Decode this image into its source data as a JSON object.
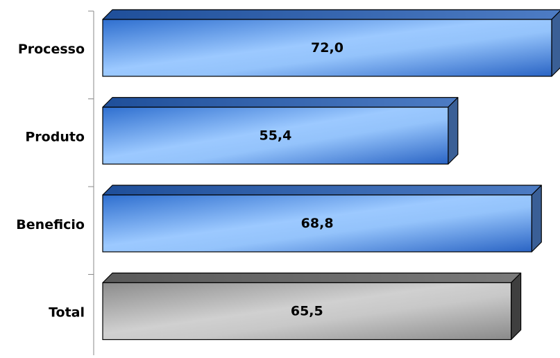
{
  "chart_data": {
    "type": "bar",
    "orientation": "horizontal",
    "style": "3d",
    "categories": [
      "Processo",
      "Produto",
      "Beneficio",
      "Total"
    ],
    "values": [
      72.0,
      55.4,
      68.8,
      65.5
    ],
    "value_labels": [
      "72,0",
      "55,4",
      "68,8",
      "65,5"
    ],
    "title": "",
    "xlabel": "",
    "ylabel": "",
    "xlim": [
      0,
      72
    ],
    "grid": false,
    "legend": "none",
    "colors": {
      "Processo": "#4a8fe0",
      "Produto": "#4a8fe0",
      "Beneficio": "#4a8fe0",
      "Total": "#9a9a9a"
    }
  }
}
